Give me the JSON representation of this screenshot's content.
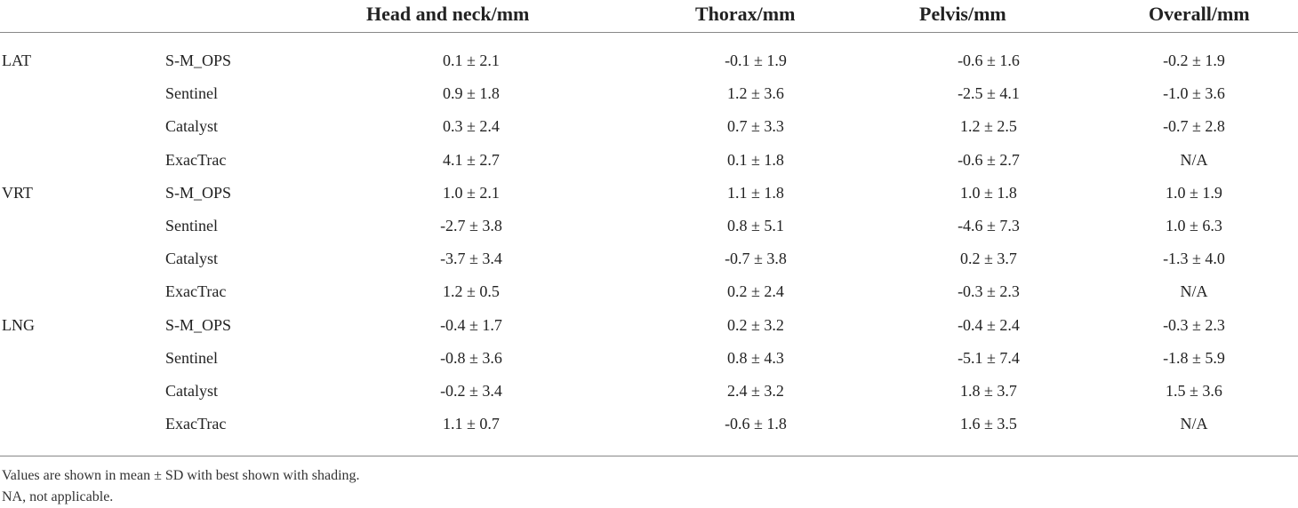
{
  "headers": {
    "axis": "",
    "system": "",
    "head_neck": "Head and neck/mm",
    "thorax": "Thorax/mm",
    "pelvis": "Pelvis/mm",
    "overall": "Overall/mm"
  },
  "rows": [
    {
      "axis": "LAT",
      "system": "S-M_OPS",
      "head_neck": "0.1 ± 2.1",
      "thorax": "-0.1 ± 1.9",
      "pelvis": "-0.6 ± 1.6",
      "overall": "-0.2 ± 1.9"
    },
    {
      "axis": "",
      "system": "Sentinel",
      "head_neck": "0.9 ± 1.8",
      "thorax": "1.2 ± 3.6",
      "pelvis": "-2.5 ± 4.1",
      "overall": "-1.0 ± 3.6"
    },
    {
      "axis": "",
      "system": "Catalyst",
      "head_neck": "0.3 ± 2.4",
      "thorax": "0.7 ± 3.3",
      "pelvis": "1.2 ± 2.5",
      "overall": "-0.7 ± 2.8"
    },
    {
      "axis": "",
      "system": "ExacTrac",
      "head_neck": "4.1 ± 2.7",
      "thorax": "0.1 ± 1.8",
      "pelvis": "-0.6 ± 2.7",
      "overall": "N/A"
    },
    {
      "axis": "VRT",
      "system": "S-M_OPS",
      "head_neck": "1.0 ± 2.1",
      "thorax": "1.1 ± 1.8",
      "pelvis": "1.0 ± 1.8",
      "overall": "1.0 ± 1.9"
    },
    {
      "axis": "",
      "system": "Sentinel",
      "head_neck": "-2.7 ± 3.8",
      "thorax": "0.8 ± 5.1",
      "pelvis": "-4.6 ± 7.3",
      "overall": "1.0 ± 6.3"
    },
    {
      "axis": "",
      "system": "Catalyst",
      "head_neck": "-3.7 ± 3.4",
      "thorax": "-0.7 ± 3.8",
      "pelvis": "0.2 ± 3.7",
      "overall": "-1.3 ± 4.0"
    },
    {
      "axis": "",
      "system": "ExacTrac",
      "head_neck": "1.2 ± 0.5",
      "thorax": "0.2 ± 2.4",
      "pelvis": "-0.3 ± 2.3",
      "overall": "N/A"
    },
    {
      "axis": "LNG",
      "system": "S-M_OPS",
      "head_neck": "-0.4 ± 1.7",
      "thorax": "0.2 ± 3.2",
      "pelvis": "-0.4 ± 2.4",
      "overall": "-0.3 ± 2.3"
    },
    {
      "axis": "",
      "system": "Sentinel",
      "head_neck": "-0.8 ± 3.6",
      "thorax": "0.8 ± 4.3",
      "pelvis": "-5.1 ± 7.4",
      "overall": "-1.8 ± 5.9"
    },
    {
      "axis": "",
      "system": "Catalyst",
      "head_neck": "-0.2 ± 3.4",
      "thorax": "2.4 ± 3.2",
      "pelvis": "1.8 ± 3.7",
      "overall": "1.5 ± 3.6"
    },
    {
      "axis": "",
      "system": "ExacTrac",
      "head_neck": "1.1 ± 0.7",
      "thorax": "-0.6 ± 1.8",
      "pelvis": "1.6 ± 3.5",
      "overall": "N/A"
    }
  ],
  "footnotes": {
    "line1": "Values are shown in mean ± SD with best shown with shading.",
    "line2": "NA, not applicable."
  }
}
